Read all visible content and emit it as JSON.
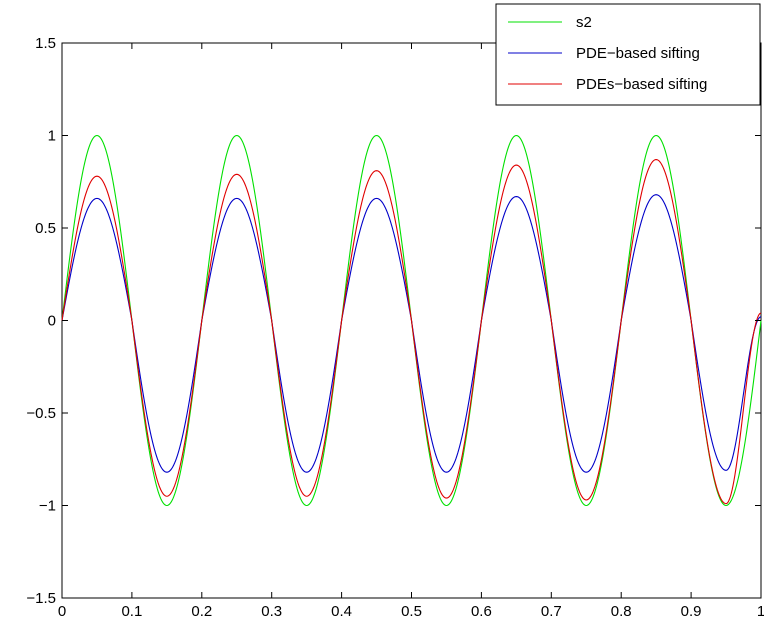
{
  "chart_data": {
    "type": "line",
    "title": "",
    "xlabel": "",
    "ylabel": "",
    "xlim": [
      0,
      1
    ],
    "ylim": [
      -1.5,
      1.5
    ],
    "x_ticks": [
      0,
      0.1,
      0.2,
      0.3,
      0.4,
      0.5,
      0.6,
      0.7,
      0.8,
      0.9,
      1
    ],
    "x_tick_labels": [
      "0",
      "0.1",
      "0.2",
      "0.3",
      "0.4",
      "0.5",
      "0.6",
      "0.7",
      "0.8",
      "0.9",
      "1"
    ],
    "y_ticks": [
      -1.5,
      -1,
      -0.5,
      0,
      0.5,
      1,
      1.5
    ],
    "y_tick_labels": [
      "−1.5",
      "−1",
      "−0.5",
      "0",
      "0.5",
      "1",
      "1.5"
    ],
    "grid": false,
    "legend_position": "top-right",
    "x": [
      0,
      0.05,
      0.1,
      0.15,
      0.2,
      0.25,
      0.3,
      0.35,
      0.4,
      0.45,
      0.5,
      0.55,
      0.6,
      0.65,
      0.7,
      0.75,
      0.8,
      0.85,
      0.9,
      0.95,
      1
    ],
    "series": [
      {
        "name": "s2",
        "color": "#00e000",
        "values": [
          0,
          1,
          0,
          -1,
          0,
          1,
          0,
          -1,
          0,
          1,
          0,
          -1,
          0,
          1,
          0,
          -1,
          0,
          1,
          0,
          -1,
          0
        ]
      },
      {
        "name": "PDE−based sifting",
        "color": "#0000c8",
        "values": [
          0,
          0.66,
          0,
          -0.82,
          0,
          0.66,
          0,
          -0.82,
          0,
          0.66,
          0,
          -0.82,
          0,
          0.67,
          0,
          -0.82,
          0,
          0.68,
          0,
          -0.81,
          0.02
        ]
      },
      {
        "name": "PDEs−based sifting",
        "color": "#e00000",
        "values": [
          0,
          0.78,
          0,
          -0.95,
          0,
          0.79,
          0,
          -0.95,
          0,
          0.81,
          0,
          -0.96,
          0,
          0.84,
          0,
          -0.97,
          0,
          0.87,
          0,
          -0.99,
          0.04
        ]
      }
    ]
  }
}
